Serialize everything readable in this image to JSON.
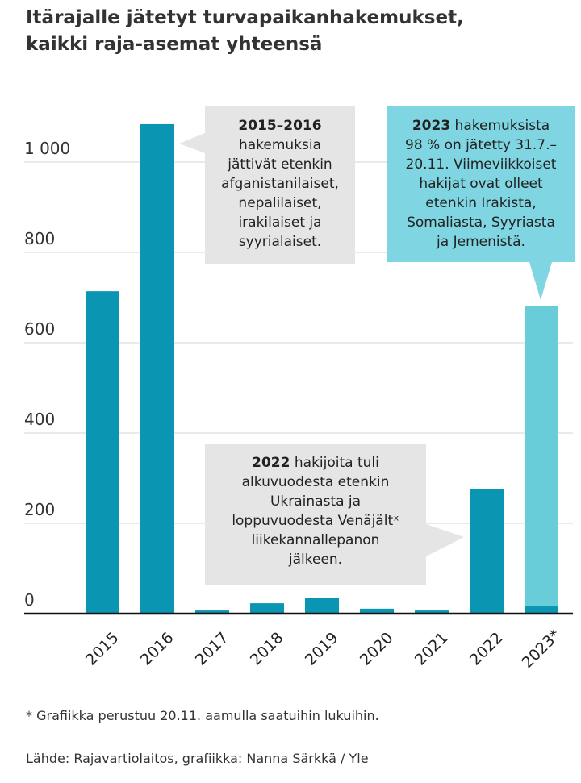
{
  "title": [
    "Itärajalle jätetyt turvapaikanhakemukset,",
    "kaikki raja-asemat yhteensä"
  ],
  "colors": {
    "bar": "#0a96b2",
    "bar_light": "#68ccd9",
    "note_gray": "#e5e5e5",
    "note_cyan": "#7fd5e1"
  },
  "chart_data": {
    "type": "bar",
    "title": "Itärajalle jätetyt turvapaikanhakemukset, kaikki raja-asemat yhteensä",
    "categories": [
      "2015",
      "2016",
      "2017",
      "2018",
      "2019",
      "2020",
      "2021",
      "2022",
      "2023*"
    ],
    "values": [
      714,
      1084,
      7,
      23,
      34,
      11,
      7,
      275,
      682
    ],
    "series_2023_split": {
      "before_31_7": 16,
      "after_31_7": 666
    },
    "yticks": [
      "0",
      "200",
      "400",
      "600",
      "800",
      "1 000"
    ],
    "ylim": [
      0,
      1200
    ],
    "grid": true
  },
  "notes": {
    "n2015": {
      "bold": "2015–2016",
      "lines": [
        "hakemuksia",
        "jättivät etenkin",
        "afganistanilaiset,",
        "nepalilaiset,",
        "irakilaiset ja",
        "syyrialaiset."
      ]
    },
    "n2023": {
      "bold": "2023",
      "first": " hakemuksista",
      "lines": [
        "98 % on jätetty  31.7.–",
        "20.11. Viimeviikkoiset",
        "hakijat ovat olleet",
        "etenkin Irakista,",
        "Somaliasta, Syyriasta",
        "ja Jemenistä."
      ]
    },
    "n2022": {
      "bold": "2022",
      "first": " hakijoita tuli",
      "lines": [
        "alkuvuodesta etenkin",
        "Ukrainasta ja",
        "loppuvuodesta Venäjältˣ",
        "liikekannallepanon",
        "jälkeen."
      ]
    }
  },
  "footnote": "* Grafiikka perustuu 20.11. aamulla saatuihin lukuihin.",
  "source": "Lähde: Rajavartiolaitos, grafiikka: Nanna Särkkä / Yle"
}
